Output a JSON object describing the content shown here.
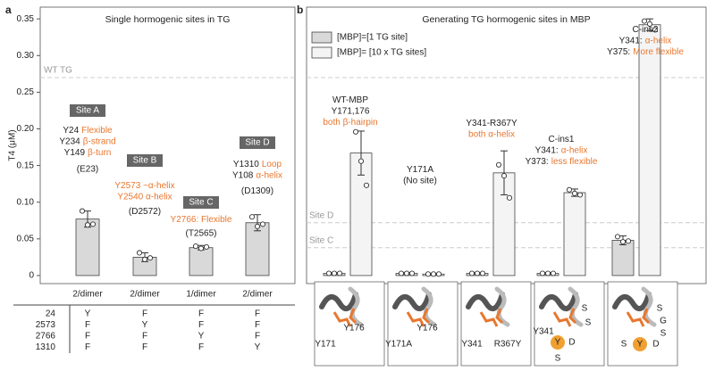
{
  "panel_labels": [
    "a",
    "b"
  ],
  "chart_data": [
    {
      "type": "bar",
      "title": "Single hormogenic sites in TG",
      "y_label": "T4 (μM)",
      "categories": [
        "2/dimer",
        "2/dimer",
        "1/dimer",
        "2/dimer"
      ],
      "values": [
        0.077,
        0.025,
        0.038,
        0.072
      ],
      "errors": [
        0.011,
        0.006,
        0.003,
        0.011
      ],
      "points": [
        [
          0.088,
          0.069,
          0.07
        ],
        [
          0.031,
          0.022,
          0.024
        ],
        [
          0.04,
          0.037,
          0.039
        ],
        [
          0.08,
          0.067,
          0.07
        ]
      ],
      "color": "#d9d9d9",
      "ylim": [
        -0.011,
        0.366
      ],
      "yticks": [
        0,
        0.05,
        {
          "value": 0.1,
          "label": "0.10"
        },
        0.15,
        {
          "value": 0.2,
          "label": "0.20"
        },
        0.25,
        {
          "value": 0.3,
          "label": "0.30"
        },
        0.35
      ],
      "reference_lines": [
        {
          "label": "WT TG",
          "value": 0.27
        }
      ],
      "site_labels": [
        {
          "box": "Site A",
          "lines": [
            [
              {
                "text": "Y24"
              },
              {
                "text": "Flexible",
                "color": "#e8772e"
              }
            ],
            [
              {
                "text": "Y234"
              },
              {
                "text": "β-strand",
                "color": "#e8772e"
              }
            ],
            [
              {
                "text": "Y149"
              },
              {
                "text": "β-turn",
                "color": "#e8772e"
              }
            ],
            [
              {
                "text": "(E23)"
              }
            ]
          ]
        },
        {
          "box": "Site B",
          "lines": [
            [
              {
                "text": "Y2573 ~α-helix",
                "color": "#e8772e"
              }
            ],
            [
              {
                "text": "Y2540 α-helix",
                "color": "#e8772e"
              }
            ],
            [
              {
                "text": "(D2572)"
              }
            ]
          ]
        },
        {
          "box": "Site C",
          "lines": [
            [
              {
                "text": "Y2766: Flexible",
                "color": "#e8772e"
              }
            ],
            [
              {
                "text": "(T2565)"
              }
            ]
          ]
        },
        {
          "box": "Site D",
          "lines": [
            [
              {
                "text": "Y1310"
              },
              {
                "text": "Loop",
                "color": "#e8772e"
              }
            ],
            [
              {
                "text": "Y108"
              },
              {
                "text": "α-helix",
                "color": "#e8772e"
              }
            ],
            [
              {
                "text": "(D1309)"
              }
            ]
          ]
        }
      ]
    },
    {
      "type": "grouped_bar",
      "title": "Generating TG hormogenic sites in MBP",
      "categories": [
        null,
        null,
        null,
        null,
        null
      ],
      "series": [
        {
          "name": "[MBP]=[1 TG site]",
          "color": "#d9d9d9",
          "values": [
            0.003,
            0.003,
            0.003,
            0.003,
            0.048
          ],
          "errors": [
            0.001,
            0.001,
            0.001,
            0.001,
            0.006
          ],
          "points": [
            [
              0.003,
              0.003,
              0.003
            ],
            [
              0.003,
              0.003,
              0.003
            ],
            [
              0.003,
              0.003,
              0.003
            ],
            [
              0.003,
              0.003,
              0.003
            ],
            [
              0.053,
              0.046,
              0.047
            ]
          ]
        },
        {
          "name": "[MBP]= [10 x TG sites]",
          "color": "#f4f4f4",
          "values": [
            0.167,
            0.002,
            0.14,
            0.113,
            0.342
          ],
          "errors": [
            0.03,
            0.001,
            0.03,
            0.005,
            0.008
          ],
          "points": [
            [
              0.196,
              0.156,
              0.123
            ],
            [
              0.002,
              0.002,
              0.002
            ],
            [
              0.151,
              0.136,
              0.106
            ],
            [
              0.117,
              0.112,
              0.11
            ],
            [
              0.347,
              0.343,
              0.335
            ]
          ]
        }
      ],
      "ylim": [
        -0.011,
        0.366
      ],
      "legend": "upper left",
      "reference_lines": [
        {
          "value": 0.27
        },
        {
          "label": "Site D",
          "value": 0.072
        },
        {
          "label": "Site C",
          "value": 0.038
        }
      ],
      "group_labels": [
        {
          "lines": [
            [
              {
                "text": "WT-MBP"
              }
            ],
            [
              {
                "text": "Y171,176"
              }
            ],
            [
              {
                "text": "both β-hairpin",
                "color": "#e8772e"
              }
            ]
          ]
        },
        {
          "lines": [
            [
              {
                "text": "Y171A"
              }
            ],
            [
              {
                "text": "(No site)"
              }
            ]
          ]
        },
        {
          "lines": [
            [
              {
                "text": "Y341-R367Y"
              }
            ],
            [
              {
                "text": "both α-helix",
                "color": "#e8772e"
              }
            ]
          ]
        },
        {
          "lines": [
            [
              {
                "text": "C-ins1"
              }
            ],
            [
              {
                "text": "Y341:"
              },
              {
                "text": "α-helix",
                "color": "#e8772e"
              }
            ],
            [
              {
                "text": "Y373:"
              },
              {
                "text": "less flexible",
                "color": "#e8772e"
              }
            ]
          ]
        },
        {
          "lines": [
            [
              {
                "text": "C-ins2"
              }
            ],
            [
              {
                "text": "Y341:"
              },
              {
                "text": "α-helix",
                "color": "#e8772e"
              }
            ],
            [
              {
                "text": "Y375:"
              },
              {
                "text": "More flexible",
                "color": "#e8772e"
              }
            ]
          ]
        }
      ]
    }
  ],
  "table": {
    "rows": [
      [
        "24",
        "Y",
        "F",
        "F",
        "F"
      ],
      [
        "2573",
        "F",
        "Y",
        "F",
        "F"
      ],
      [
        "2766",
        "F",
        "F",
        "Y",
        "F"
      ],
      [
        "1310",
        "F",
        "F",
        "F",
        "Y"
      ]
    ]
  },
  "structures": [
    {
      "labels": [
        "Y176",
        "Y171"
      ]
    },
    {
      "labels": [
        "Y176",
        "Y171A"
      ]
    },
    {
      "labels": [
        "Y341",
        "R367Y"
      ]
    },
    {
      "labels": [
        "Y341",
        "S",
        "S",
        "Y",
        "D",
        "S"
      ]
    },
    {
      "labels": [
        "S",
        "G",
        "S",
        "S",
        "Y",
        "D"
      ]
    }
  ]
}
